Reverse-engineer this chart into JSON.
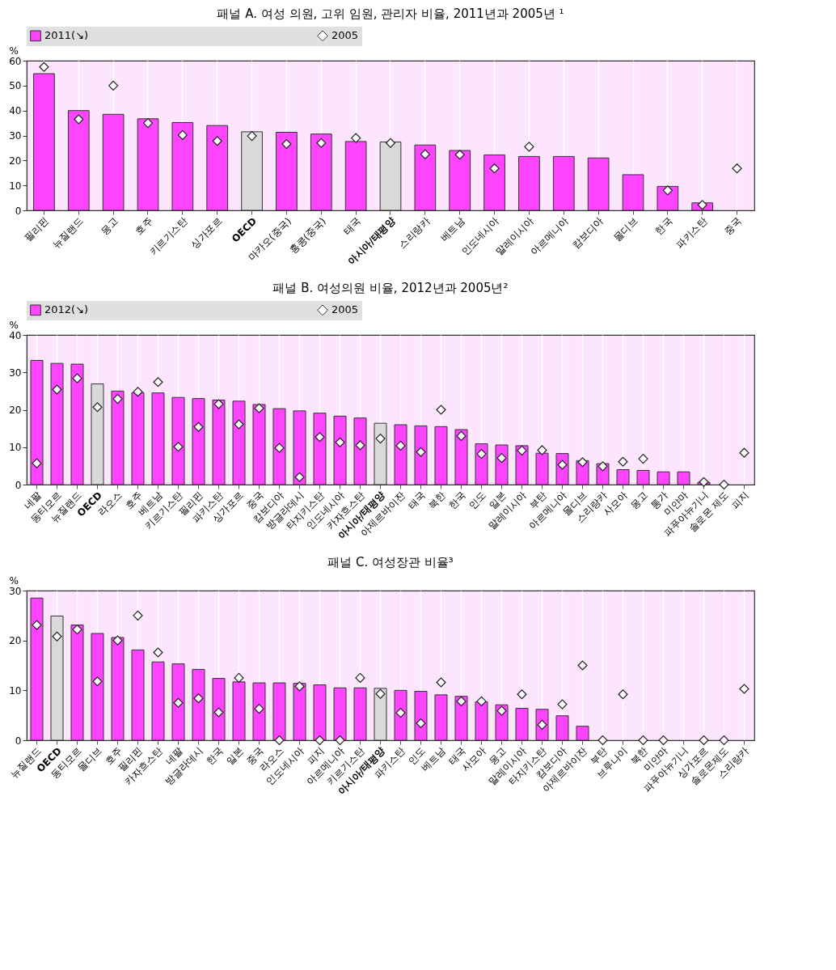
{
  "chart_data": [
    {
      "type": "bar",
      "title": "패널 A. 여성 의원, 고위 임원, 관리자 비율, 2011년과 2005년 ¹",
      "ylabel": "%",
      "legend": "top",
      "grid": "x",
      "marker": "diamond",
      "ylim": [
        0,
        60
      ],
      "yticks": [
        0,
        10,
        20,
        30,
        40,
        50,
        60
      ],
      "categories": [
        "필리핀",
        "뉴질랜드",
        "몽고",
        "호주",
        "키르기스탄",
        "싱가포르",
        "OECD",
        "마카오(중국)",
        "홍콩(중국)",
        "태국",
        "아시아/태평양",
        "스리랑카",
        "베트남",
        "인도네시아",
        "말레이시아",
        "아르메니아",
        "캄보디아",
        "몰디브",
        "한국",
        "파키스탄",
        "중국"
      ],
      "series": [
        {
          "name": "2011(↘)",
          "type": "bar",
          "color": "#ff44ff",
          "colors": [
            "#ff44ff",
            "#ff44ff",
            "#ff44ff",
            "#ff44ff",
            "#ff44ff",
            "#ff44ff",
            "#d9d9d9",
            "#ff44ff",
            "#ff44ff",
            "#ff44ff",
            "#d9d9d9",
            "#ff44ff",
            "#ff44ff",
            "#ff44ff",
            "#ff44ff",
            "#ff44ff",
            "#ff44ff",
            "#ff44ff",
            "#ff44ff",
            "#ff44ff",
            "#ff44ff"
          ],
          "values": [
            54.8,
            40,
            38.5,
            36.7,
            35.2,
            34,
            31.5,
            31.3,
            30.6,
            27.6,
            27.4,
            26.2,
            24,
            22.2,
            21.6,
            21.6,
            21,
            14.3,
            9.6,
            3,
            null
          ]
        },
        {
          "name": "2005",
          "type": "scatter",
          "color": "#ffffff",
          "values": [
            57.5,
            36.5,
            50,
            35,
            30.2,
            27.8,
            29.8,
            26.6,
            27,
            29,
            27,
            22.5,
            22.3,
            16.8,
            25.5,
            null,
            null,
            null,
            8,
            2.2,
            16.8
          ]
        }
      ]
    },
    {
      "type": "bar",
      "title": "패널 B. 여성의원 비율, 2012년과 2005년²",
      "ylabel": "%",
      "legend": "top",
      "grid": "x",
      "marker": "diamond",
      "ylim": [
        0,
        40
      ],
      "yticks": [
        0,
        10,
        20,
        30,
        40
      ],
      "categories": [
        "네팔",
        "동티모르",
        "뉴질랜드",
        "OECD",
        "라오스",
        "호주",
        "베트남",
        "키르기스탄",
        "필리핀",
        "파키스탄",
        "싱가포르",
        "중국",
        "캄보디아",
        "방글라데시",
        "타지키스탄",
        "인도네시아",
        "카자흐스탄",
        "아시아/태평양",
        "아제르바이잔",
        "태국",
        "북한",
        "한국",
        "인도",
        "일본",
        "말레이시아",
        "부탄",
        "아르메니아",
        "몰디브",
        "스리랑카",
        "사모아",
        "몽고",
        "통가",
        "미얀마",
        "파푸아뉴기니",
        "솔로몬 제도",
        "피지"
      ],
      "series": [
        {
          "name": "2012(↘)",
          "type": "bar",
          "color": "#ff44ff",
          "colors": [
            "#ff44ff",
            "#ff44ff",
            "#ff44ff",
            "#d9d9d9",
            "#ff44ff",
            "#ff44ff",
            "#ff44ff",
            "#ff44ff",
            "#ff44ff",
            "#ff44ff",
            "#ff44ff",
            "#ff44ff",
            "#ff44ff",
            "#ff44ff",
            "#ff44ff",
            "#ff44ff",
            "#ff44ff",
            "#d9d9d9",
            "#ff44ff",
            "#ff44ff",
            "#ff44ff",
            "#ff44ff",
            "#ff44ff",
            "#ff44ff",
            "#ff44ff",
            "#ff44ff",
            "#ff44ff",
            "#ff44ff",
            "#ff44ff",
            "#ff44ff",
            "#ff44ff",
            "#ff44ff",
            "#ff44ff",
            "#ff44ff",
            "#ff44ff",
            "#ff44ff"
          ],
          "values": [
            33.2,
            32.4,
            32.2,
            26.9,
            25,
            24.6,
            24.5,
            23.3,
            23,
            22.6,
            22.3,
            21.4,
            20.3,
            19.7,
            19.1,
            18.3,
            17.8,
            16.4,
            16,
            15.7,
            15.5,
            14.7,
            10.9,
            10.6,
            10.4,
            8.4,
            8.3,
            6.4,
            5.6,
            4,
            3.8,
            3.4,
            3.4,
            0.6,
            null,
            null
          ]
        },
        {
          "name": "2005",
          "type": "scatter",
          "color": "#ffffff",
          "values": [
            5.7,
            25.4,
            28.4,
            20.7,
            22.9,
            24.8,
            27.4,
            10.1,
            15.4,
            21.5,
            16.1,
            20.4,
            9.8,
            2,
            12.7,
            11.3,
            10.5,
            12.3,
            10.4,
            8.7,
            20,
            13,
            8.2,
            7.1,
            9.1,
            9.2,
            5.3,
            6,
            4.9,
            6.1,
            6.9,
            null,
            null,
            0.7,
            0,
            8.5
          ]
        }
      ]
    },
    {
      "type": "bar",
      "title": "패널 C. 여성장관 비율³",
      "ylabel": "%",
      "grid": "x",
      "marker": "diamond",
      "ylim": [
        0,
        30
      ],
      "yticks": [
        0,
        10,
        20,
        30
      ],
      "categories": [
        "뉴질랜드",
        "OECD",
        "동티모르",
        "몰디브",
        "호주",
        "필리핀",
        "카자흐스탄",
        "네팔",
        "방글라데시",
        "한국",
        "일본",
        "중국",
        "라오스",
        "인도네시아",
        "피지",
        "아르메니아",
        "키르기스탄",
        "아시아/태평양",
        "파키스탄",
        "인도",
        "베트남",
        "태국",
        "사모아",
        "몽고",
        "말레이시아",
        "타지키스탄",
        "캄보디아",
        "아제르바이잔",
        "부탄",
        "브루나이",
        "북한",
        "미얀마",
        "파푸아뉴기니",
        "싱가포르",
        "솔로몬제도",
        "스리랑카"
      ],
      "series": [
        {
          "type": "bar",
          "color": "#ff44ff",
          "colors": [
            "#ff44ff",
            "#d9d9d9",
            "#ff44ff",
            "#ff44ff",
            "#ff44ff",
            "#ff44ff",
            "#ff44ff",
            "#ff44ff",
            "#ff44ff",
            "#ff44ff",
            "#ff44ff",
            "#ff44ff",
            "#ff44ff",
            "#ff44ff",
            "#ff44ff",
            "#ff44ff",
            "#ff44ff",
            "#d9d9d9",
            "#ff44ff",
            "#ff44ff",
            "#ff44ff",
            "#ff44ff",
            "#ff44ff",
            "#ff44ff",
            "#ff44ff",
            "#ff44ff",
            "#ff44ff",
            "#ff44ff",
            "#ff44ff",
            "#ff44ff",
            "#ff44ff",
            "#ff44ff",
            "#ff44ff",
            "#ff44ff",
            "#ff44ff",
            "#ff44ff"
          ],
          "values": [
            28.5,
            24.9,
            23.1,
            21.4,
            20.6,
            18.1,
            15.7,
            15.3,
            14.2,
            12.4,
            11.7,
            11.5,
            11.5,
            11.4,
            11.1,
            10.5,
            10.5,
            10.4,
            10,
            9.8,
            9.1,
            8.8,
            7.7,
            7.1,
            6.4,
            6.2,
            4.9,
            2.8,
            null,
            null,
            null,
            null,
            null,
            null,
            null,
            null
          ]
        },
        {
          "type": "scatter",
          "color": "#ffffff",
          "values": [
            23.1,
            20.8,
            22.2,
            11.8,
            20,
            25,
            17.6,
            7.5,
            8.4,
            5.6,
            12.5,
            6.3,
            0,
            10.8,
            0,
            0,
            12.5,
            9.3,
            5.5,
            3.4,
            11.6,
            7.8,
            7.8,
            5.9,
            9.2,
            3.1,
            7.2,
            15,
            0,
            9.2,
            0,
            0,
            null,
            0,
            0,
            10.3
          ]
        }
      ]
    }
  ]
}
